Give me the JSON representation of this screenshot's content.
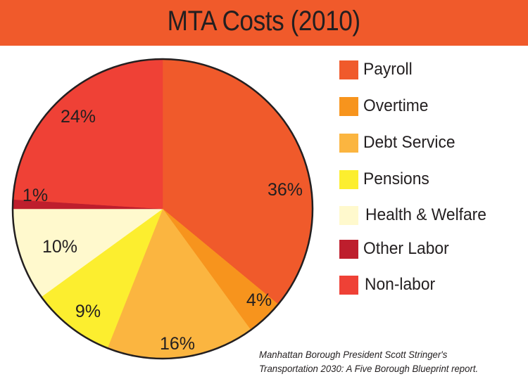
{
  "chart_data": {
    "type": "pie",
    "title": "MTA Costs (2010)",
    "start": "top",
    "direction": "clockwise",
    "legend_position": "right",
    "slices": [
      {
        "name": "Payroll",
        "value": 36,
        "label": "36%",
        "color": "#f05a2b"
      },
      {
        "name": "Overtime",
        "value": 4,
        "label": "4%",
        "color": "#f7941d"
      },
      {
        "name": "Debt Service",
        "value": 16,
        "label": "16%",
        "color": "#fbb540"
      },
      {
        "name": "Pensions",
        "value": 9,
        "label": "9%",
        "color": "#fcee2f"
      },
      {
        "name": "Health & Welfare",
        "value": 10,
        "label": "10%",
        "color": "#fff9cd"
      },
      {
        "name": "Other Labor",
        "value": 1,
        "label": "1%",
        "color": "#be1e2d"
      },
      {
        "name": "Non-labor",
        "value": 24,
        "label": "24%",
        "color": "#ef4136"
      }
    ]
  },
  "header": {
    "title": "MTA Costs (2010)",
    "background_color": "#f05a2b"
  },
  "legend": {
    "items": [
      {
        "label": "Payroll",
        "color": "#f05a2b"
      },
      {
        "label": "Overtime",
        "color": "#f7941d"
      },
      {
        "label": "Debt Service",
        "color": "#fbb540"
      },
      {
        "label": "Pensions",
        "color": "#fcee2f"
      },
      {
        "label": "Health & Welfare",
        "color": "#fff9cd"
      },
      {
        "label": "Other Labor",
        "color": "#be1e2d"
      },
      {
        "label": "Non-labor",
        "color": "#ef4136"
      }
    ]
  },
  "source": {
    "line1": "Manhattan Borough President Scott Stringer's",
    "line2": "Transportation 2030: A Five Borough Blueprint report."
  }
}
